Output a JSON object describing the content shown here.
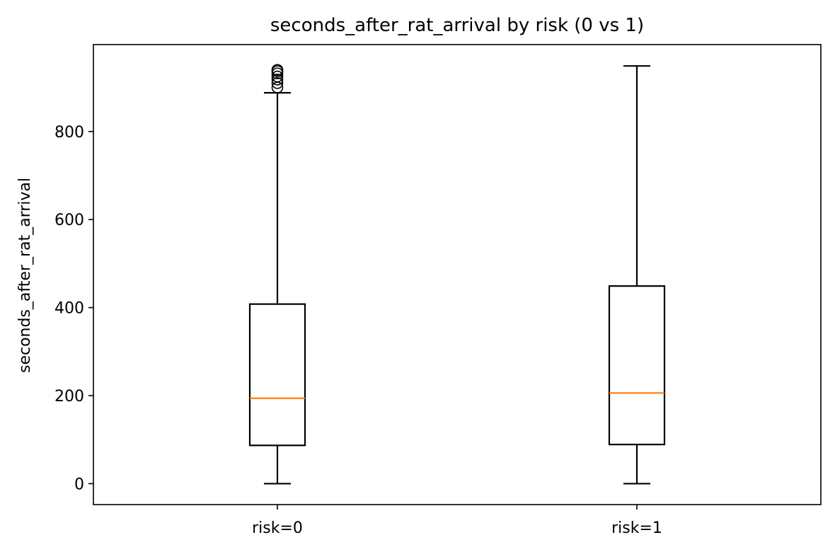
{
  "chart_data": {
    "type": "boxplot",
    "title": "seconds_after_rat_arrival by risk (0 vs 1)",
    "xlabel": "",
    "ylabel": "seconds_after_rat_arrival",
    "categories": [
      "risk=0",
      "risk=1"
    ],
    "ylim": [
      -47.5,
      997.5
    ],
    "yticks": [
      0,
      200,
      400,
      600,
      800
    ],
    "grid": false,
    "boxes": [
      {
        "category": "risk=0",
        "whisker_low": 0,
        "q1": 87,
        "median": 194,
        "q3": 408,
        "whisker_high": 888,
        "outliers": [
          900,
          910,
          918,
          925,
          932,
          937,
          940
        ]
      },
      {
        "category": "risk=1",
        "whisker_low": 0,
        "q1": 89,
        "median": 206,
        "q3": 449,
        "whisker_high": 949,
        "outliers": []
      }
    ],
    "colors": {
      "box": "#000000",
      "median": "#ff7f0e",
      "whisker": "#000000",
      "flier": "#000000"
    }
  }
}
